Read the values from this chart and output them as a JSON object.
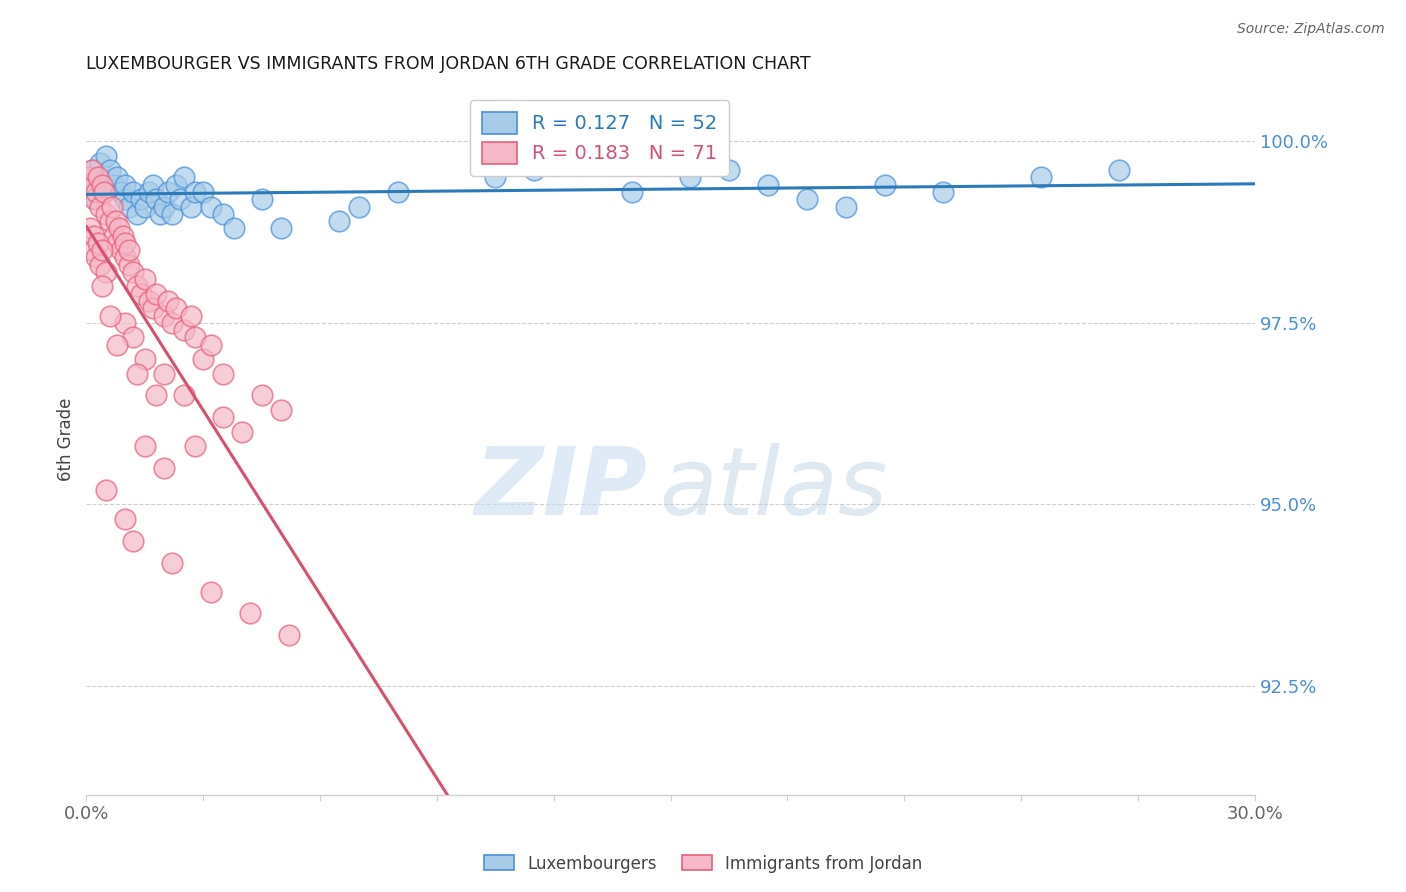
{
  "title": "LUXEMBOURGER VS IMMIGRANTS FROM JORDAN 6TH GRADE CORRELATION CHART",
  "source": "Source: ZipAtlas.com",
  "ylabel": "6th Grade",
  "xmin": 0.0,
  "xmax": 30.0,
  "ymin": 91.0,
  "ymax": 100.8,
  "yticks": [
    92.5,
    95.0,
    97.5,
    100.0
  ],
  "ytick_labels": [
    "92.5%",
    "95.0%",
    "97.5%",
    "100.0%"
  ],
  "blue_color": "#a8cce8",
  "pink_color": "#f5b8c8",
  "blue_edge_color": "#4a90d9",
  "pink_edge_color": "#e8607a",
  "blue_line_color": "#2b7bba",
  "pink_line_color": "#d94f6e",
  "blue_R": 0.127,
  "blue_N": 52,
  "pink_R": 0.183,
  "pink_N": 71,
  "blue_x": [
    0.1,
    0.15,
    0.2,
    0.25,
    0.3,
    0.35,
    0.4,
    0.5,
    0.6,
    0.7,
    0.8,
    0.9,
    1.0,
    1.0,
    1.1,
    1.2,
    1.3,
    1.4,
    1.5,
    1.6,
    1.7,
    1.8,
    1.9,
    2.0,
    2.1,
    2.2,
    2.3,
    2.4,
    2.5,
    2.7,
    2.8,
    3.0,
    3.2,
    3.5,
    3.8,
    4.5,
    5.0,
    6.5,
    7.0,
    8.0,
    10.5,
    11.5,
    14.0,
    15.5,
    16.5,
    17.5,
    18.5,
    19.5,
    20.5,
    22.0,
    24.5,
    26.5
  ],
  "blue_y": [
    99.5,
    99.6,
    99.4,
    99.2,
    99.5,
    99.7,
    99.3,
    99.8,
    99.6,
    99.4,
    99.5,
    99.3,
    99.2,
    99.4,
    99.1,
    99.3,
    99.0,
    99.2,
    99.1,
    99.3,
    99.4,
    99.2,
    99.0,
    99.1,
    99.3,
    99.0,
    99.4,
    99.2,
    99.5,
    99.1,
    99.3,
    99.3,
    99.1,
    99.0,
    98.8,
    99.2,
    98.8,
    98.9,
    99.1,
    99.3,
    99.5,
    99.6,
    99.3,
    99.5,
    99.6,
    99.4,
    99.2,
    99.1,
    99.4,
    99.3,
    99.5,
    99.6
  ],
  "pink_x": [
    0.05,
    0.1,
    0.15,
    0.2,
    0.25,
    0.3,
    0.35,
    0.4,
    0.45,
    0.5,
    0.6,
    0.65,
    0.7,
    0.75,
    0.8,
    0.85,
    0.9,
    0.95,
    1.0,
    1.0,
    1.1,
    1.1,
    1.2,
    1.3,
    1.4,
    1.5,
    1.6,
    1.7,
    1.8,
    2.0,
    2.1,
    2.2,
    2.3,
    2.5,
    2.7,
    2.8,
    3.0,
    3.2,
    3.5,
    4.5,
    5.0,
    0.1,
    0.15,
    0.2,
    0.25,
    0.3,
    0.35,
    0.4,
    0.5,
    1.0,
    1.2,
    1.5,
    2.0,
    2.5,
    3.5,
    4.0,
    1.5,
    2.0,
    0.5,
    1.0,
    1.2,
    2.2,
    3.2,
    4.2,
    5.2,
    1.8,
    2.8,
    0.8,
    1.3,
    0.4,
    0.6
  ],
  "pink_y": [
    99.5,
    99.4,
    99.6,
    99.2,
    99.3,
    99.5,
    99.1,
    99.4,
    99.3,
    99.0,
    98.9,
    99.1,
    98.7,
    98.9,
    98.6,
    98.8,
    98.5,
    98.7,
    98.4,
    98.6,
    98.3,
    98.5,
    98.2,
    98.0,
    97.9,
    98.1,
    97.8,
    97.7,
    97.9,
    97.6,
    97.8,
    97.5,
    97.7,
    97.4,
    97.6,
    97.3,
    97.0,
    97.2,
    96.8,
    96.5,
    96.3,
    98.8,
    98.5,
    98.7,
    98.4,
    98.6,
    98.3,
    98.5,
    98.2,
    97.5,
    97.3,
    97.0,
    96.8,
    96.5,
    96.2,
    96.0,
    95.8,
    95.5,
    95.2,
    94.8,
    94.5,
    94.2,
    93.8,
    93.5,
    93.2,
    96.5,
    95.8,
    97.2,
    96.8,
    98.0,
    97.6
  ],
  "watermark_zip": "ZIP",
  "watermark_atlas": "atlas",
  "grid_color": "#d0d0d0",
  "title_color": "#1a1a1a",
  "tick_color": "#4a90d9",
  "bottom_tick_color": "#666666"
}
